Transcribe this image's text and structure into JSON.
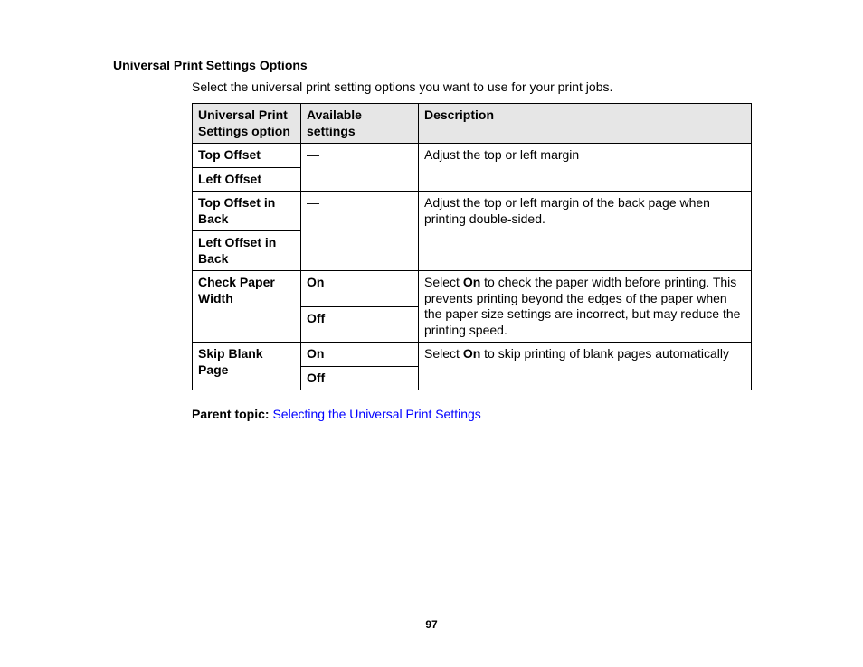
{
  "heading": "Universal Print Settings Options",
  "intro": "Select the universal print setting options you want to use for your print jobs.",
  "table": {
    "headers": {
      "col1": "Universal Print Settings option",
      "col2": "Available settings",
      "col3": "Description"
    },
    "group1": {
      "option_a": "Top Offset",
      "option_b": "Left Offset",
      "settings": "—",
      "description": "Adjust the top or left margin"
    },
    "group2": {
      "option_a": "Top Offset in Back",
      "option_b": "Left Offset in Back",
      "settings": "—",
      "description": "Adjust the top or left margin of the back page when printing double-sided."
    },
    "group3": {
      "option": "Check Paper Width",
      "setting_a": "On",
      "setting_b": "Off",
      "desc_prefix": "Select ",
      "desc_bold": "On",
      "desc_suffix": " to check the paper width before printing. This prevents printing beyond the edges of the paper when the paper size settings are incorrect, but may reduce the printing speed."
    },
    "group4": {
      "option": "Skip Blank Page",
      "setting_a": "On",
      "setting_b": "Off",
      "desc_prefix": "Select ",
      "desc_bold": "On",
      "desc_suffix": " to skip printing of blank pages automatically"
    }
  },
  "parent_topic": {
    "label": "Parent topic:",
    "link_text": "Selecting the Universal Print Settings"
  },
  "page_number": "97",
  "colors": {
    "header_bg": "#e6e6e6",
    "border": "#000000",
    "link": "#0000ff",
    "text": "#000000",
    "background": "#ffffff"
  }
}
